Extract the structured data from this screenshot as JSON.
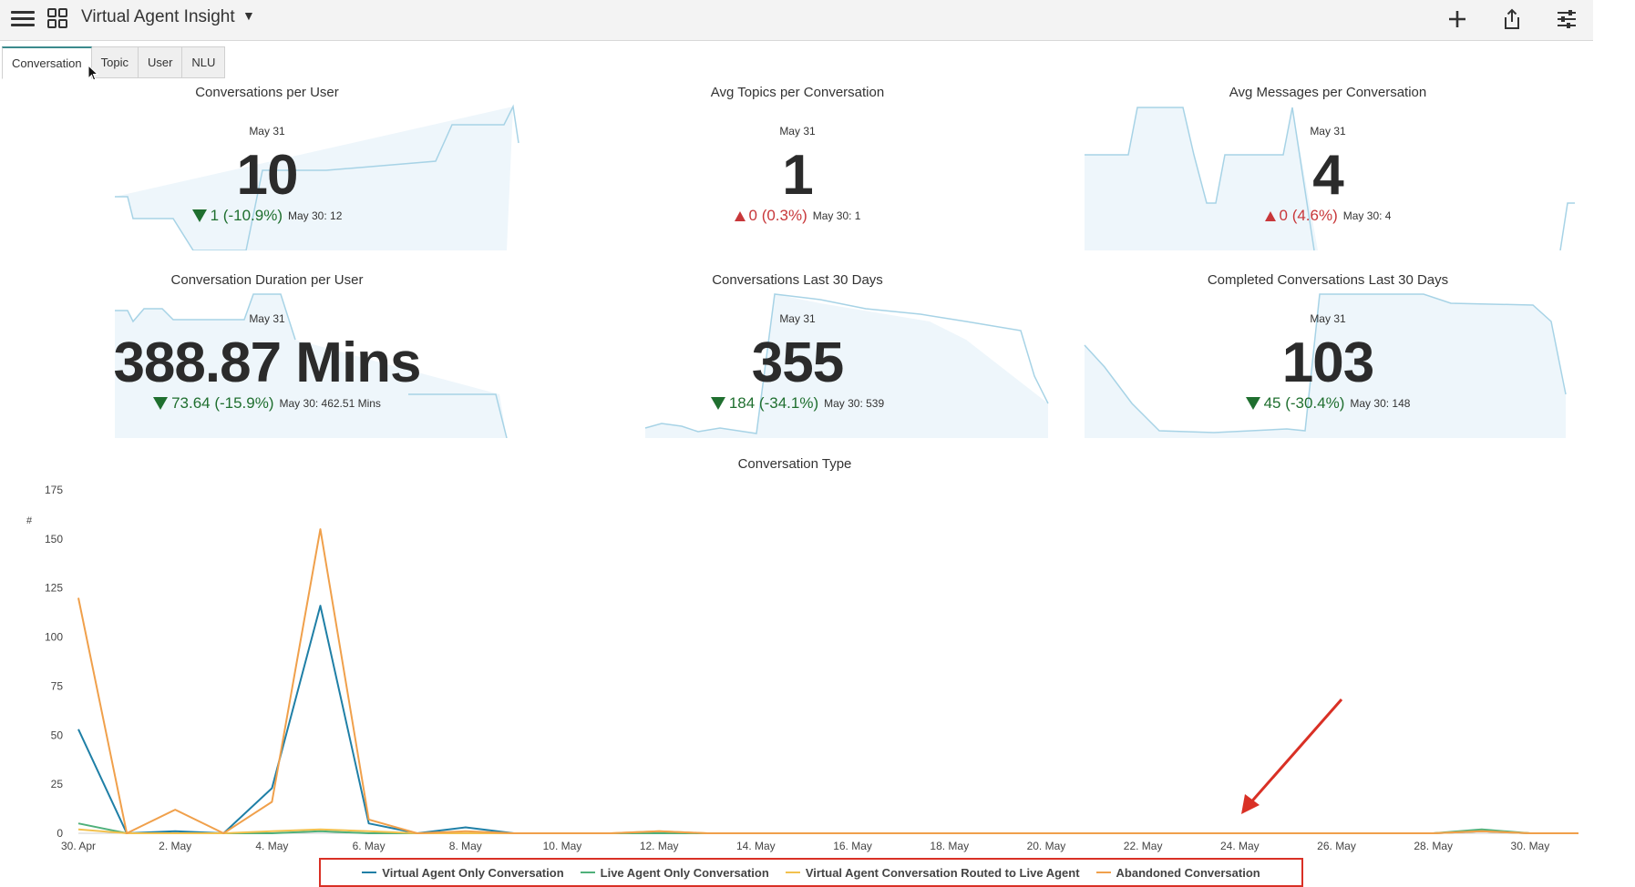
{
  "header": {
    "menu_icon": "hamburger-menu-icon",
    "grid_icon": "dashboard-grid-icon",
    "title": "Virtual Agent Insight",
    "actions": [
      {
        "icon": "plus-icon"
      },
      {
        "icon": "share-icon"
      },
      {
        "icon": "filter-sliders-icon"
      }
    ]
  },
  "tabs": [
    {
      "label": "Conversation",
      "active": true
    },
    {
      "label": "Topic",
      "active": false
    },
    {
      "label": "User",
      "active": false
    },
    {
      "label": "NLU",
      "active": false
    }
  ],
  "cards": [
    {
      "title": "Conversations per User",
      "date": "May 31",
      "value": "10",
      "direction": "down",
      "delta": "1 (-10.9%)",
      "previous": "May 30: 12"
    },
    {
      "title": "Avg Topics per Conversation",
      "date": "May 31",
      "value": "1",
      "direction": "up",
      "delta": "0 (0.3%)",
      "previous": "May 30: 1"
    },
    {
      "title": "Avg Messages per Conversation",
      "date": "May 31",
      "value": "4",
      "direction": "up",
      "delta": "0 (4.6%)",
      "previous": "May 30: 4"
    },
    {
      "title": "Conversation Duration per User",
      "date": "May 31",
      "value": "388.87 Mins",
      "direction": "down",
      "delta": "73.64 (-15.9%)",
      "previous": "May 30: 462.51 Mins"
    },
    {
      "title": "Conversations Last 30 Days",
      "date": "May 31",
      "value": "355",
      "direction": "down",
      "delta": "184 (-34.1%)",
      "previous": "May 30: 539"
    },
    {
      "title": "Completed Conversations Last 30 Days",
      "date": "May 31",
      "value": "103",
      "direction": "down",
      "delta": "45 (-30.4%)",
      "previous": "May 30: 148"
    }
  ],
  "colors": {
    "accent": "#3b8a8c",
    "sparkline": "#a7d3e6",
    "up": "#c8373a",
    "down": "#1f6f2f",
    "annotation": "#d93025"
  },
  "chart_data": {
    "type": "line",
    "title": "Conversation Type",
    "xlabel": "",
    "ylabel": "#",
    "ylim": [
      0,
      175
    ],
    "yticks": [
      0,
      25,
      50,
      75,
      100,
      125,
      150,
      175
    ],
    "x": [
      "30. Apr",
      "1. May",
      "2. May",
      "3. May",
      "4. May",
      "5. May",
      "6. May",
      "7. May",
      "8. May",
      "9. May",
      "10. May",
      "11. May",
      "12. May",
      "13. May",
      "14. May",
      "15. May",
      "16. May",
      "17. May",
      "18. May",
      "19. May",
      "20. May",
      "21. May",
      "22. May",
      "23. May",
      "24. May",
      "25. May",
      "26. May",
      "27. May",
      "28. May",
      "29. May",
      "30. May",
      "31. May"
    ],
    "xtick_labels": [
      "30. Apr",
      "2. May",
      "4. May",
      "6. May",
      "8. May",
      "10. May",
      "12. May",
      "14. May",
      "16. May",
      "18. May",
      "20. May",
      "22. May",
      "24. May",
      "26. May",
      "28. May",
      "30. May"
    ],
    "legend_position": "bottom",
    "grid": false,
    "series": [
      {
        "name": "Virtual Agent Only Conversation",
        "color": "#1f7fa6",
        "values": [
          53,
          0,
          1,
          0,
          23,
          116,
          5,
          0,
          3,
          0,
          0,
          0,
          0,
          0,
          0,
          0,
          0,
          0,
          0,
          0,
          0,
          0,
          0,
          0,
          0,
          0,
          0,
          0,
          0,
          1,
          0,
          0
        ]
      },
      {
        "name": "Live Agent Only Conversation",
        "color": "#4fb07a",
        "values": [
          5,
          0,
          0,
          0,
          0,
          1,
          0,
          0,
          0,
          0,
          0,
          0,
          0,
          0,
          0,
          0,
          0,
          0,
          0,
          0,
          0,
          0,
          0,
          0,
          0,
          0,
          0,
          0,
          0,
          2,
          0,
          0
        ]
      },
      {
        "name": "Virtual Agent Conversation Routed to Live Agent",
        "color": "#f2c14e",
        "values": [
          2,
          0,
          0,
          0,
          1,
          2,
          1,
          0,
          0,
          0,
          0,
          0,
          1,
          0,
          0,
          0,
          0,
          0,
          0,
          0,
          0,
          0,
          0,
          0,
          0,
          0,
          0,
          0,
          0,
          1,
          0,
          0
        ]
      },
      {
        "name": "Abandoned Conversation",
        "color": "#f0a04b",
        "values": [
          120,
          0,
          12,
          0,
          16,
          155,
          7,
          0,
          1,
          0,
          0,
          0,
          1,
          0,
          0,
          0,
          0,
          0,
          0,
          0,
          0,
          0,
          0,
          0,
          0,
          0,
          0,
          0,
          0,
          1,
          0,
          0
        ]
      }
    ]
  }
}
